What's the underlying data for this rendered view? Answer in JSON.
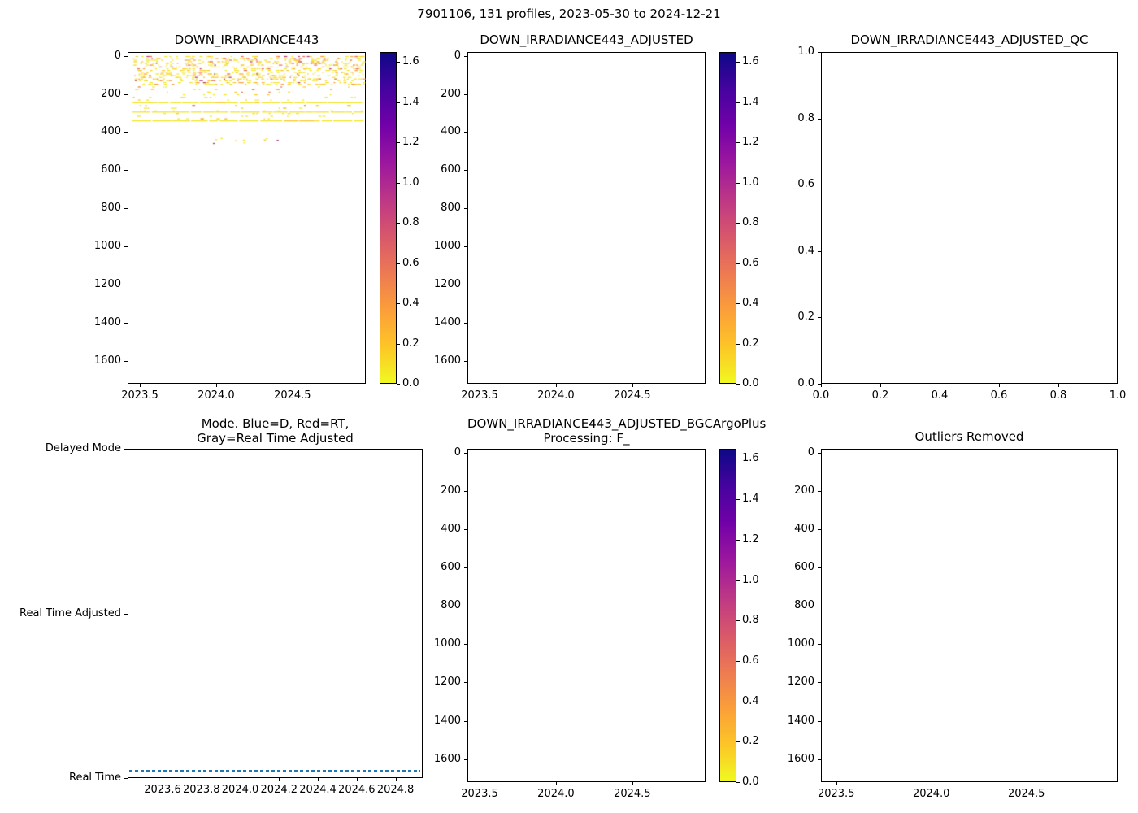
{
  "suptitle": "7901106, 131 profiles, 2023-05-30 to 2024-12-21",
  "colors": {
    "axis": "#000000",
    "mode_line_blue": "#1f77b4",
    "cmap_name": "plasma_r",
    "cmap_stops": [
      "#f0f921",
      "#fdc527",
      "#fb9e3a",
      "#ed7953",
      "#d8576b",
      "#bd3786",
      "#9c179e",
      "#7201a8",
      "#46039f",
      "#0d0887"
    ]
  },
  "chart_data": [
    {
      "id": "down_irradiance443",
      "type": "heatmap",
      "title": "DOWN_IRRADIANCE443",
      "x_range": [
        2023.42,
        2024.98
      ],
      "y_range": [
        -20,
        1720
      ],
      "y_axis_note": "depth axis inverted, 0 at top",
      "x_tick_values": [
        2023.5,
        2024.0,
        2024.5
      ],
      "x_tick_labels": [
        "2023.5",
        "2024.0",
        "2024.5"
      ],
      "y_tick_values": [
        0,
        200,
        400,
        600,
        800,
        1000,
        1200,
        1400,
        1600
      ],
      "y_tick_labels": [
        "0",
        "200",
        "400",
        "600",
        "800",
        "1000",
        "1200",
        "1400",
        "1600"
      ],
      "colorbar": {
        "vmin": 0.0,
        "vmax": 1.65,
        "tick_values": [
          0.0,
          0.2,
          0.4,
          0.6,
          0.8,
          1.0,
          1.2,
          1.4,
          1.6
        ],
        "tick_labels": [
          "0.0",
          "0.2",
          "0.4",
          "0.6",
          "0.8",
          "1.0",
          "1.2",
          "1.4",
          "1.6"
        ]
      },
      "scatter": {
        "description": "Low irradiance values (mostly 0-0.3, yellow/orange) in the upper ~0-350 m across all 131 profiles; dense band 0-150 m, scattered rows to 350 m, three near-continuous rows near 240/290/340 m, a few isolated points near 420-460 m around 2024.0-2024.4",
        "seed": 7,
        "x_min": 2023.45,
        "x_max": 2024.965,
        "row_bands": [
          {
            "depth_min": 2,
            "depth_max": 150,
            "row_step": 9,
            "dashes_per_row": 42
          },
          {
            "depth_min": 160,
            "depth_max": 330,
            "row_step": 14,
            "dashes_per_row": 9
          }
        ],
        "solid_lines_depth": [
          243,
          292,
          338
        ],
        "sparse_points": {
          "depth_min": 415,
          "depth_max": 460,
          "x_min": 2023.95,
          "x_max": 2024.45,
          "count": 9
        },
        "palette": [
          {
            "color": "#f2e426",
            "w": 0.6
          },
          {
            "color": "#fdc627",
            "w": 0.18
          },
          {
            "color": "#fb9d3a",
            "w": 0.12
          },
          {
            "color": "#e8695a",
            "w": 0.07
          },
          {
            "color": "#b0357f",
            "w": 0.03
          }
        ]
      }
    },
    {
      "id": "down_irradiance443_adjusted",
      "type": "heatmap",
      "title": "DOWN_IRRADIANCE443_ADJUSTED",
      "empty": true,
      "x_range": [
        2023.42,
        2024.98
      ],
      "y_range": [
        -20,
        1720
      ],
      "x_tick_values": [
        2023.5,
        2024.0,
        2024.5
      ],
      "x_tick_labels": [
        "2023.5",
        "2024.0",
        "2024.5"
      ],
      "y_tick_values": [
        0,
        200,
        400,
        600,
        800,
        1000,
        1200,
        1400,
        1600
      ],
      "y_tick_labels": [
        "0",
        "200",
        "400",
        "600",
        "800",
        "1000",
        "1200",
        "1400",
        "1600"
      ],
      "colorbar": {
        "vmin": 0.0,
        "vmax": 1.65,
        "tick_values": [
          0.0,
          0.2,
          0.4,
          0.6,
          0.8,
          1.0,
          1.2,
          1.4,
          1.6
        ],
        "tick_labels": [
          "0.0",
          "0.2",
          "0.4",
          "0.6",
          "0.8",
          "1.0",
          "1.2",
          "1.4",
          "1.6"
        ]
      }
    },
    {
      "id": "down_irradiance443_adjusted_qc",
      "type": "scatter",
      "title": "DOWN_IRRADIANCE443_ADJUSTED_QC",
      "empty": true,
      "x_range": [
        0,
        1
      ],
      "y_range": [
        1,
        0
      ],
      "x_tick_values": [
        0,
        0.2,
        0.4,
        0.6,
        0.8,
        1.0
      ],
      "x_tick_labels": [
        "0.0",
        "0.2",
        "0.4",
        "0.6",
        "0.8",
        "1.0"
      ],
      "y_tick_values": [
        1.0,
        0.8,
        0.6,
        0.4,
        0.2,
        0.0
      ],
      "y_tick_labels": [
        "1.0",
        "0.8",
        "0.6",
        "0.4",
        "0.2",
        "0.0"
      ]
    },
    {
      "id": "mode",
      "type": "scatter",
      "title_lines": [
        "Mode. Blue=D, Red=RT,",
        "Gray=Real Time Adjusted"
      ],
      "y_category_labels": [
        "Delayed Mode",
        "Real Time Adjusted",
        "Real Time"
      ],
      "x_range": [
        2023.42,
        2024.94
      ],
      "x_tick_values": [
        2023.6,
        2023.8,
        2024.0,
        2024.2,
        2024.4,
        2024.6,
        2024.8
      ],
      "x_tick_labels": [
        "2023.6",
        "2023.8",
        "2024.0",
        "2024.2",
        "2024.4",
        "2024.6",
        "2024.8"
      ],
      "series": {
        "name": "mode",
        "value_all_profiles": "Real Time",
        "n_profiles": 131,
        "color": "#1f77b4",
        "marker": "dense dashed dots along Real Time row",
        "x_start": 2023.46,
        "x_end": 2024.93
      }
    },
    {
      "id": "down_irradiance443_adjusted_bgcargoplus",
      "type": "heatmap",
      "title_lines": [
        "DOWN_IRRADIANCE443_ADJUSTED_BGCArgoPlus",
        "Processing: F_"
      ],
      "empty": true,
      "x_range": [
        2023.42,
        2024.98
      ],
      "y_range": [
        -20,
        1720
      ],
      "x_tick_values": [
        2023.5,
        2024.0,
        2024.5
      ],
      "x_tick_labels": [
        "2023.5",
        "2024.0",
        "2024.5"
      ],
      "y_tick_values": [
        0,
        200,
        400,
        600,
        800,
        1000,
        1200,
        1400,
        1600
      ],
      "y_tick_labels": [
        "0",
        "200",
        "400",
        "600",
        "800",
        "1000",
        "1200",
        "1400",
        "1600"
      ],
      "colorbar": {
        "vmin": 0.0,
        "vmax": 1.65,
        "tick_values": [
          0.0,
          0.2,
          0.4,
          0.6,
          0.8,
          1.0,
          1.2,
          1.4,
          1.6
        ],
        "tick_labels": [
          "0.0",
          "0.2",
          "0.4",
          "0.6",
          "0.8",
          "1.0",
          "1.2",
          "1.4",
          "1.6"
        ]
      }
    },
    {
      "id": "outliers_removed",
      "type": "heatmap",
      "title": "Outliers Removed",
      "empty": true,
      "x_range": [
        2023.42,
        2024.98
      ],
      "y_range": [
        -20,
        1720
      ],
      "x_tick_values": [
        2023.5,
        2024.0,
        2024.5
      ],
      "x_tick_labels": [
        "2023.5",
        "2024.0",
        "2024.5"
      ],
      "y_tick_values": [
        0,
        200,
        400,
        600,
        800,
        1000,
        1200,
        1400,
        1600
      ],
      "y_tick_labels": [
        "0",
        "200",
        "400",
        "600",
        "800",
        "1000",
        "1200",
        "1400",
        "1600"
      ]
    }
  ]
}
